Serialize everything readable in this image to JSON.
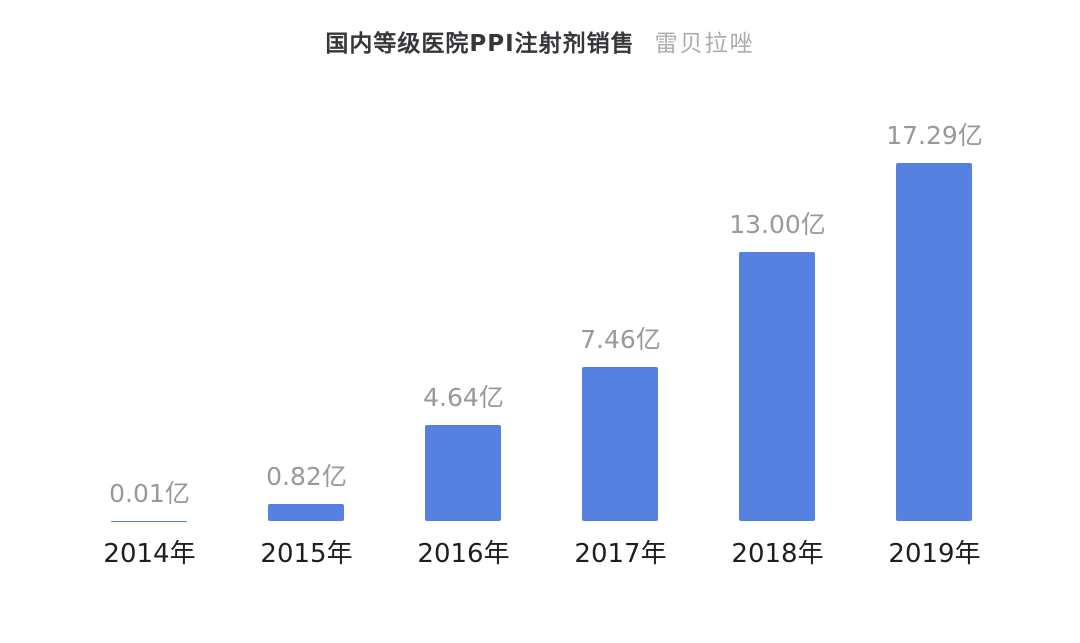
{
  "chart_data": {
    "type": "bar",
    "title": "国内等级医院PPI注射剂销售",
    "subtitle": "雷贝拉唑",
    "categories": [
      "2014年",
      "2015年",
      "2016年",
      "2017年",
      "2018年",
      "2019年"
    ],
    "values": [
      0.01,
      0.82,
      4.64,
      7.46,
      13.0,
      17.29
    ],
    "value_labels": [
      "0.01亿",
      "0.82亿",
      "4.64亿",
      "7.46亿",
      "13.00亿",
      "17.29亿"
    ],
    "unit": "亿",
    "ylim": [
      0,
      17.29
    ],
    "grid": false,
    "legend": "none",
    "axis_lines": "none",
    "colors": {
      "bar": "#5681E0",
      "title": "#37373B",
      "subtitle": "#ACACAC",
      "value_label": "#999999",
      "category_label": "#1E1E1E",
      "background": "#FFFFFF"
    }
  }
}
